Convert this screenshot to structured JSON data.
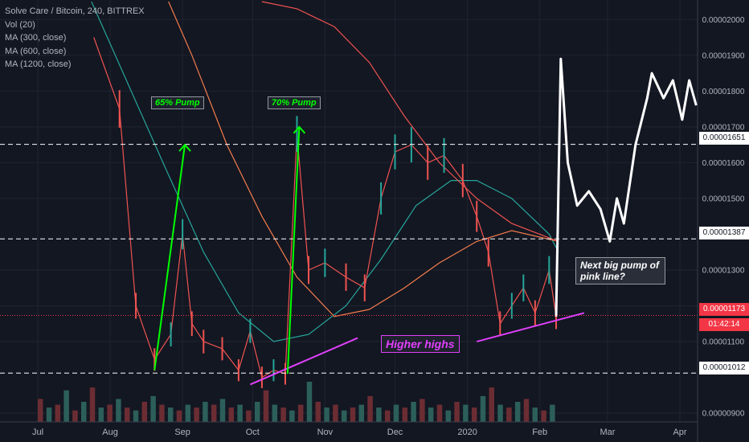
{
  "header": {
    "title": "Solve Care / Bitcoin, 240, BITTREX",
    "indicators": [
      "Vol (20)",
      "MA (300, close)",
      "MA (600, close)",
      "MA (1200, close)"
    ]
  },
  "chart_data": {
    "type": "line",
    "title": "Solve Care / Bitcoin, 240, BITTREX",
    "ylim": [
      8.8e-06,
      2.05e-05
    ],
    "x_ticks": [
      "Jul",
      "Aug",
      "Sep",
      "Oct",
      "Nov",
      "Dec",
      "2020",
      "Feb",
      "Mar",
      "Apr"
    ],
    "y_ticks": [
      "0.00002000",
      "0.00001900",
      "0.00001800",
      "0.00001700",
      "0.00001600",
      "0.00001500",
      "0.00001300",
      "0.00001200",
      "0.00001100",
      "0.00000900"
    ],
    "price_series": {
      "name": "",
      "x": [
        "2019-07-25",
        "2019-08-05",
        "2019-08-12",
        "2019-08-20",
        "2019-08-27",
        "2019-09-01",
        "2019-09-05",
        "2019-09-10",
        "2019-09-18",
        "2019-09-25",
        "2019-09-30",
        "2019-10-05",
        "2019-10-10",
        "2019-10-15",
        "2019-10-20",
        "2019-10-25",
        "2019-11-01",
        "2019-11-10",
        "2019-11-18",
        "2019-11-25",
        "2019-12-01",
        "2019-12-08",
        "2019-12-15",
        "2019-12-22",
        "2019-12-30",
        "2020-01-05",
        "2020-01-10",
        "2020-01-15",
        "2020-01-20",
        "2020-01-25",
        "2020-01-30",
        "2020-02-05",
        "2020-02-08"
      ],
      "y": [
        1.95e-05,
        1.75e-05,
        1.2e-05,
        1.05e-05,
        1.12e-05,
        1.4e-05,
        1.15e-05,
        1.1e-05,
        1.08e-05,
        1.02e-05,
        1.13e-05,
        1e-05,
        1.02e-05,
        1.01e-05,
        1.68e-05,
        1.3e-05,
        1.32e-05,
        1.28e-05,
        1.25e-05,
        1.5e-05,
        1.63e-05,
        1.65e-05,
        1.6e-05,
        1.62e-05,
        1.55e-05,
        1.45e-05,
        1.35e-05,
        1.15e-05,
        1.2e-05,
        1.25e-05,
        1.18e-05,
        1.3e-05,
        1.17e-05
      ]
    },
    "projection": {
      "x": [
        "2020-02-08",
        "2020-02-10",
        "2020-02-13",
        "2020-02-17",
        "2020-02-22",
        "2020-02-27",
        "2020-03-02",
        "2020-03-05",
        "2020-03-08",
        "2020-03-13",
        "2020-03-18",
        "2020-03-20",
        "2020-03-25",
        "2020-03-29",
        "2020-04-02",
        "2020-04-05",
        "2020-04-08"
      ],
      "y": [
        1.17e-05,
        1.89e-05,
        1.6e-05,
        1.48e-05,
        1.52e-05,
        1.47e-05,
        1.38e-05,
        1.5e-05,
        1.43e-05,
        1.65e-05,
        1.78e-05,
        1.85e-05,
        1.78e-05,
        1.83e-05,
        1.72e-05,
        1.83e-05,
        1.76e-05
      ]
    },
    "ma_series": [
      {
        "name": "MA (300, close)",
        "color": "#26a69a",
        "x": [
          "2019-07-24",
          "2019-08-10",
          "2019-08-25",
          "2019-09-10",
          "2019-09-25",
          "2019-10-10",
          "2019-10-25",
          "2019-11-10",
          "2019-11-25",
          "2019-12-10",
          "2019-12-25",
          "2020-01-05",
          "2020-01-20",
          "2020-02-05",
          "2020-02-09"
        ],
        "y": [
          2.05e-05,
          1.8e-05,
          1.58e-05,
          1.35e-05,
          1.18e-05,
          1.1e-05,
          1.12e-05,
          1.2e-05,
          1.33e-05,
          1.48e-05,
          1.55e-05,
          1.55e-05,
          1.5e-05,
          1.4e-05,
          1.35e-05
        ]
      },
      {
        "name": "MA (600, close)",
        "color": "#f57c4d",
        "x": [
          "2019-08-26",
          "2019-09-05",
          "2019-09-20",
          "2019-10-05",
          "2019-10-20",
          "2019-11-05",
          "2019-11-20",
          "2019-12-05",
          "2019-12-20",
          "2020-01-05",
          "2020-01-20",
          "2020-02-09"
        ],
        "y": [
          2.05e-05,
          1.9e-05,
          1.65e-05,
          1.45e-05,
          1.28e-05,
          1.17e-05,
          1.19e-05,
          1.25e-05,
          1.32e-05,
          1.38e-05,
          1.41e-05,
          1.38e-05
        ]
      },
      {
        "name": "MA (1200, close)",
        "color": "#ef5350",
        "x": [
          "2019-10-05",
          "2019-10-20",
          "2019-11-05",
          "2019-11-20",
          "2019-12-05",
          "2019-12-20",
          "2020-01-05",
          "2020-01-20",
          "2020-02-09"
        ],
        "y": [
          2.05e-05,
          2.03e-05,
          1.98e-05,
          1.88e-05,
          1.73e-05,
          1.6e-05,
          1.5e-05,
          1.43e-05,
          1.38e-05
        ]
      }
    ],
    "volume_series": {
      "name": "Vol (20)",
      "values": [
        40,
        25,
        30,
        55,
        20,
        35,
        60,
        25,
        30,
        40,
        25,
        20,
        35,
        45,
        30,
        25,
        20,
        30,
        25,
        35,
        30,
        40,
        25,
        30,
        20,
        35,
        55,
        30,
        25,
        20,
        30,
        70,
        35,
        25,
        30,
        20,
        25,
        30,
        45,
        25,
        20,
        30,
        25,
        35,
        40,
        25,
        30,
        20,
        35,
        30,
        25,
        45,
        60,
        30,
        25,
        35,
        40,
        25,
        20,
        30
      ]
    },
    "horizontal_levels": [
      {
        "value": 1.651e-05,
        "label": "0.00001651"
      },
      {
        "value": 1.387e-05,
        "label": "0.00001387"
      },
      {
        "value": 1.012e-05,
        "label": "0.00001012"
      }
    ],
    "current_price": {
      "value": 1.173e-05,
      "label": "0.00001173",
      "countdown": "01:42:14"
    },
    "annotations": [
      {
        "text": "65% Pump",
        "color": "#00ff00"
      },
      {
        "text": "70% Pump",
        "color": "#00ff00"
      },
      {
        "text": "Higher highs",
        "color": "#e040fb"
      },
      {
        "text": "Next big pump of pink line?",
        "color": "#ffffff"
      }
    ],
    "trendlines": [
      {
        "name": "support-line-1",
        "color": "#e040fb",
        "from": [
          "2019-09-30",
          9.8e-06
        ],
        "to": [
          "2019-11-15",
          1.11e-05
        ]
      },
      {
        "name": "support-line-2",
        "color": "#e040fb",
        "from": [
          "2020-01-05",
          1.1e-05
        ],
        "to": [
          "2020-02-20",
          1.18e-05
        ]
      },
      {
        "name": "pump-arrow-1",
        "color": "#00ff00",
        "from": [
          "2019-08-20",
          1.02e-05
        ],
        "to": [
          "2019-09-02",
          1.65e-05
        ]
      },
      {
        "name": "pump-arrow-2",
        "color": "#00ff00",
        "from": [
          "2019-10-16",
          1.01e-05
        ],
        "to": [
          "2019-10-21",
          1.7e-05
        ]
      }
    ]
  }
}
